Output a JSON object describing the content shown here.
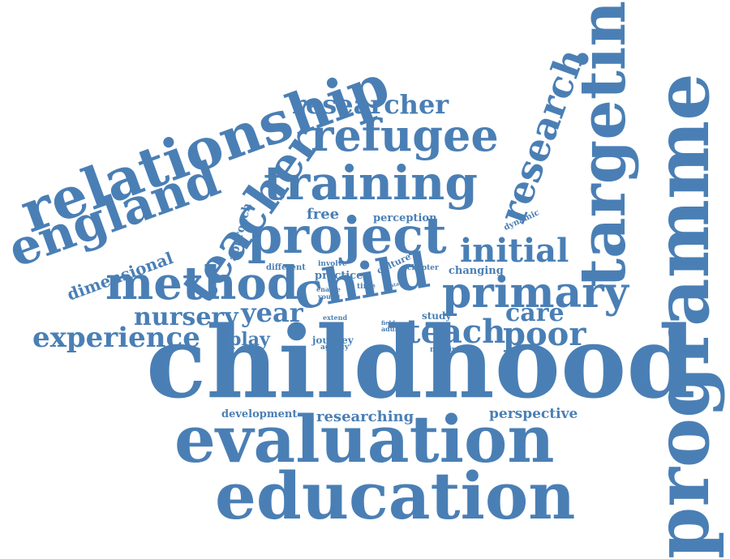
{
  "style": {
    "word_color": "#4a7fb5",
    "background": "#ffffff"
  },
  "words": {
    "childhood": "childhood",
    "programme": "programme",
    "evaluation": "evaluation",
    "education": "education",
    "relationship": "relationship",
    "targeting": "targeting",
    "england": "england",
    "teacher": "teacher",
    "research": "research",
    "project": "project",
    "training": "training",
    "refugee": "refugee",
    "method": "method",
    "child": "child",
    "primary": "primary",
    "researcher": "researcher",
    "initial": "initial",
    "experience": "experience",
    "teach": "teach",
    "poor": "poor",
    "nursery": "nursery",
    "year": "year",
    "care": "care",
    "play": "play",
    "dimensional": "dimensional",
    "approach": "approach",
    "free": "free",
    "perception": "perception",
    "dynamic": "dynamic",
    "researching": "researching",
    "development": "development",
    "perspective": "perspective",
    "practice": "practice",
    "changing": "changing",
    "culture": "culture",
    "chapter": "chapter",
    "study": "study",
    "different": "different",
    "involve": "involve",
    "enable": "enable",
    "young": "young",
    "time": "time",
    "data": "data",
    "field": "field",
    "extend": "extend",
    "adult": "adult",
    "journey": "journey",
    "agency": "agency",
    "multiple": "multiple"
  }
}
